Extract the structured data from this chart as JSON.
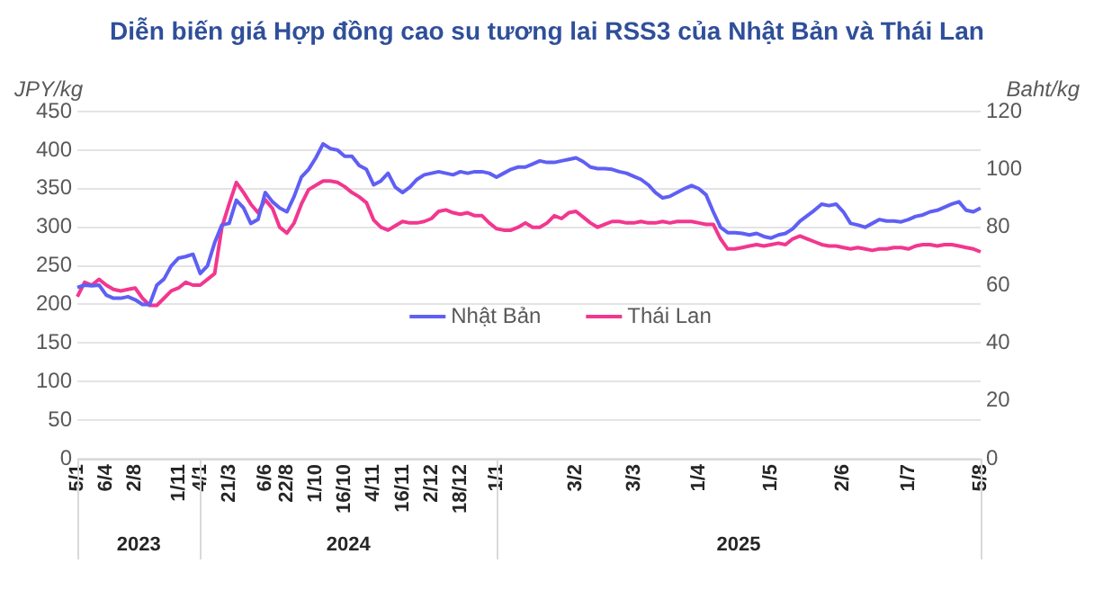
{
  "chart_data": {
    "type": "line",
    "title": "Diễn biến giá Hợp đồng cao su tương lai RSS3 của Nhật Bản và Thái Lan",
    "ylabel": "JPY/kg",
    "y2label": "Baht/kg",
    "categories": [
      "5/1",
      null,
      null,
      null,
      "6/4",
      null,
      null,
      null,
      "2/8",
      null,
      null,
      null,
      null,
      null,
      "1/11",
      null,
      null,
      "4/1",
      null,
      null,
      null,
      "21/3",
      null,
      null,
      null,
      null,
      "6/6",
      null,
      null,
      "22/8",
      null,
      null,
      null,
      "1/10",
      null,
      null,
      null,
      "16/10",
      null,
      null,
      null,
      "4/11",
      null,
      null,
      null,
      "16/11",
      null,
      null,
      null,
      "2/12",
      null,
      null,
      null,
      "18/12",
      null,
      null,
      null,
      null,
      "1/1",
      null,
      null,
      null,
      null,
      null,
      null,
      null,
      null,
      null,
      null,
      "3/2",
      null,
      null,
      null,
      null,
      null,
      null,
      null,
      "3/3",
      null,
      null,
      null,
      null,
      null,
      null,
      null,
      null,
      "1/4",
      null,
      null,
      null,
      null,
      null,
      null,
      null,
      null,
      null,
      "1/5",
      null,
      null,
      null,
      null,
      null,
      null,
      null,
      null,
      null,
      "2/6",
      null,
      null,
      null,
      null,
      null,
      null,
      null,
      null,
      "1/7",
      null,
      null,
      null,
      null,
      null,
      null,
      null,
      null,
      null,
      "5/8"
    ],
    "series": [
      {
        "name": "Nhật Bản",
        "color": "#5f5ff5",
        "values": [
          222,
          225,
          224,
          225,
          212,
          208,
          208,
          210,
          206,
          200,
          200,
          225,
          233,
          250,
          260,
          262,
          265,
          240,
          250,
          280,
          303,
          305,
          335,
          325,
          305,
          310,
          345,
          333,
          325,
          320,
          340,
          365,
          375,
          390,
          408,
          402,
          400,
          392,
          392,
          380,
          375,
          355,
          360,
          370,
          352,
          345,
          352,
          362,
          368,
          370,
          372,
          370,
          368,
          372,
          370,
          372,
          372,
          370,
          365,
          370,
          375,
          378,
          378,
          382,
          386,
          384,
          384,
          386,
          388,
          390,
          385,
          378,
          376,
          376,
          375,
          372,
          370,
          366,
          362,
          355,
          345,
          338,
          340,
          345,
          350,
          354,
          350,
          342,
          320,
          300,
          293,
          293,
          292,
          290,
          292,
          288,
          286,
          290,
          292,
          298,
          308,
          315,
          322,
          330,
          328,
          330,
          320,
          305,
          303,
          300,
          305,
          310,
          308,
          308,
          307,
          310,
          314,
          316,
          320,
          322,
          326,
          330,
          333,
          322,
          320,
          325
        ]
      },
      {
        "name": "Thái Lan",
        "color": "#f2378f",
        "axis": "y2",
        "values": [
          56,
          61,
          60,
          62,
          60,
          58.5,
          58,
          58.5,
          59,
          55.5,
          53,
          53,
          55.5,
          58,
          59,
          61,
          60,
          60,
          62,
          64,
          80,
          88,
          95.5,
          92,
          88,
          85,
          89.5,
          86.5,
          80,
          78,
          81.5,
          88,
          93,
          94.5,
          96,
          96,
          95.5,
          94,
          92,
          90.5,
          88.5,
          82.5,
          80,
          79,
          80.5,
          82,
          81.5,
          81.5,
          82,
          83,
          85.5,
          86,
          85,
          84.5,
          85,
          84,
          84,
          81.5,
          79.5,
          79,
          79,
          80,
          81.5,
          80,
          80,
          81.5,
          84,
          83,
          85,
          85.5,
          83.5,
          81.5,
          80,
          81,
          82,
          82,
          81.5,
          81.5,
          82,
          81.5,
          81.5,
          82,
          81.5,
          82,
          82,
          82,
          81.5,
          81,
          81,
          76,
          72.5,
          72.5,
          73,
          73.5,
          74,
          73.5,
          74,
          74.5,
          74,
          76,
          77,
          76,
          75,
          74,
          73.5,
          73.5,
          73,
          72.5,
          73,
          72.5,
          72,
          72.5,
          72.5,
          73,
          73,
          72.5,
          73.5,
          74,
          74,
          73.5,
          74,
          74,
          73.5,
          73,
          72.5,
          71.5
        ]
      }
    ],
    "ylim": [
      0,
      450
    ],
    "yticks": [
      0,
      50,
      100,
      150,
      200,
      250,
      300,
      350,
      400,
      450
    ],
    "y2lim": [
      0,
      120
    ],
    "y2ticks": [
      0,
      20,
      40,
      60,
      80,
      100,
      120
    ],
    "annotations": [
      "2023",
      "2024",
      "2025"
    ],
    "grid": "y",
    "legend": "center",
    "marker": "none",
    "line_style": "solid"
  }
}
